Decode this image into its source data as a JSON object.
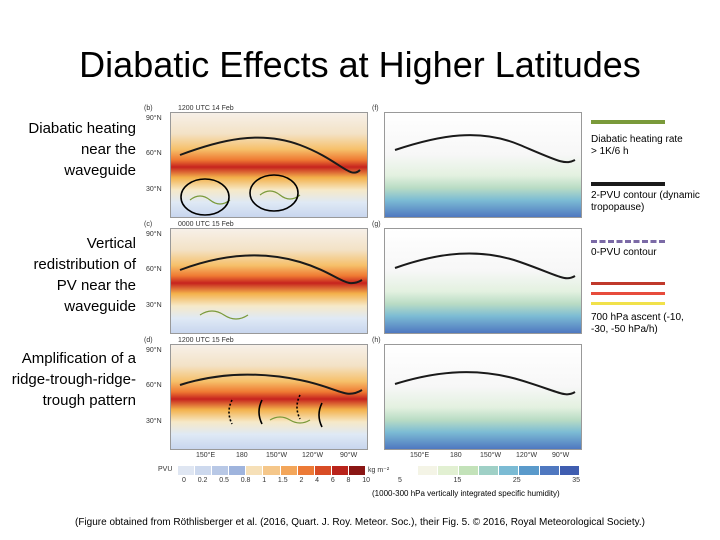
{
  "title": "Diabatic Effects at Higher Latitudes",
  "side_labels": [
    "Diabatic heating near the waveguide",
    "Vertical redistribution of PV near the waveguide",
    "Amplification of a ridge-trough-ridge-trough pattern"
  ],
  "panels_left": [
    {
      "letter": "(b)",
      "time": "1200 UTC 14 Feb"
    },
    {
      "letter": "(c)",
      "time": "0000 UTC 15 Feb"
    },
    {
      "letter": "(d)",
      "time": "1200 UTC 15 Feb"
    }
  ],
  "panels_right": [
    {
      "letter": "(f)"
    },
    {
      "letter": "(g)"
    },
    {
      "letter": "(h)"
    }
  ],
  "lat_labels": [
    "90°N",
    "60°N",
    "30°N"
  ],
  "lon_labels": [
    "150°E",
    "180",
    "150°W",
    "120°W",
    "90°W"
  ],
  "legend": {
    "diabatic": "Diabatic heating rate > 1K/6 h",
    "pv2": "2-PVU contour (dynamic tropopause)",
    "pv0": "0-PVU contour",
    "ascent": "700 hPa ascent (-10, -30, -50 hPa/h)",
    "colors": {
      "diabatic": "#7a9a3a",
      "pv2": "#1a1a1a",
      "pv0": "#7b6aa6",
      "ascent": [
        "#c0392b",
        "#e74c3c",
        "#f1e14a"
      ]
    }
  },
  "pv_colorbar": {
    "label": "PVU",
    "ticks": [
      "0",
      "0.2",
      "0.5",
      "0.8",
      "1",
      "1.5",
      "2",
      "4",
      "6",
      "8",
      "10"
    ],
    "colors": [
      "#dfe6f2",
      "#cdd9ee",
      "#b8c8e6",
      "#9fb4dd",
      "#f6e0b8",
      "#f5c78a",
      "#f3a65a",
      "#ec7a36",
      "#d84c25",
      "#b9231b",
      "#8a1614"
    ]
  },
  "q_colorbar": {
    "unit": "kg m⁻²",
    "ticks": [
      "5",
      "15",
      "25",
      "35"
    ],
    "colors": [
      "#ffffff",
      "#f4f4e6",
      "#e2f0d2",
      "#c3e2b9",
      "#9fd0c6",
      "#7bbbd4",
      "#5a9acb",
      "#4f78c0",
      "#3f5db0"
    ],
    "caption": "(1000-300 hPa vertically integrated specific humidity)"
  },
  "citation": "(Figure obtained from Röthlisberger et al. (2016, Quart. J. Roy. Meteor. Soc.), their Fig. 5. © 2016, Royal Meteorological Society.)"
}
